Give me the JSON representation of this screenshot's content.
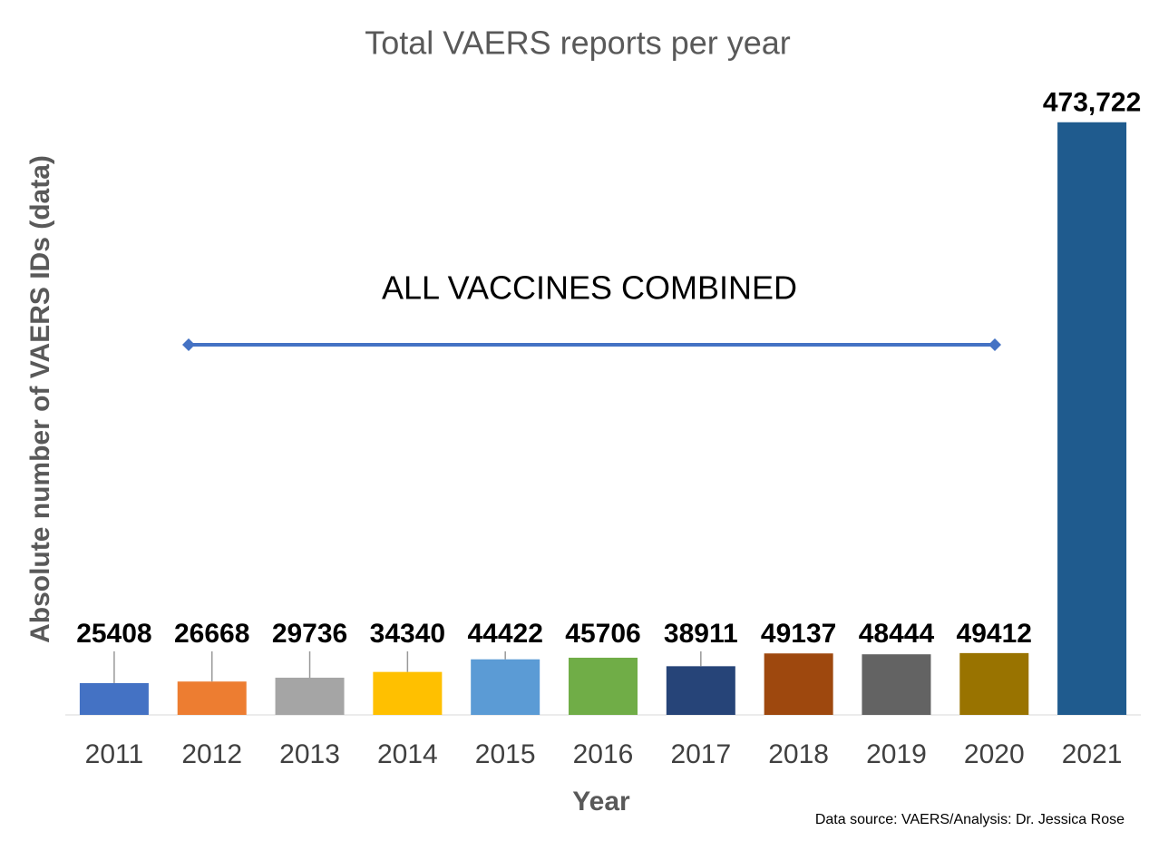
{
  "chart_data": {
    "type": "bar",
    "title": "Total VAERS reports per year",
    "x_label": "Year",
    "y_label": "Absolute number of VAERS IDs (data)",
    "annotation": "ALL VACCINES COMBINED",
    "source": "Data source: VAERS/Analysis: Dr. Jessica Rose",
    "categories": [
      "2011",
      "2012",
      "2013",
      "2014",
      "2015",
      "2016",
      "2017",
      "2018",
      "2019",
      "2020",
      "2021"
    ],
    "values": [
      25408,
      26668,
      29736,
      34340,
      44422,
      45706,
      38911,
      49137,
      48444,
      49412,
      473722
    ],
    "value_labels": [
      "25408",
      "26668",
      "29736",
      "34340",
      "44422",
      "45706",
      "38911",
      "49137",
      "48444",
      "49412",
      "473,722"
    ],
    "colors": [
      "#4472c4",
      "#ed7d31",
      "#a5a5a5",
      "#ffc000",
      "#5b9bd5",
      "#70ad47",
      "#264478",
      "#9e480e",
      "#636363",
      "#997300",
      "#1f5b8e"
    ],
    "ylim": [
      0,
      475000
    ]
  }
}
